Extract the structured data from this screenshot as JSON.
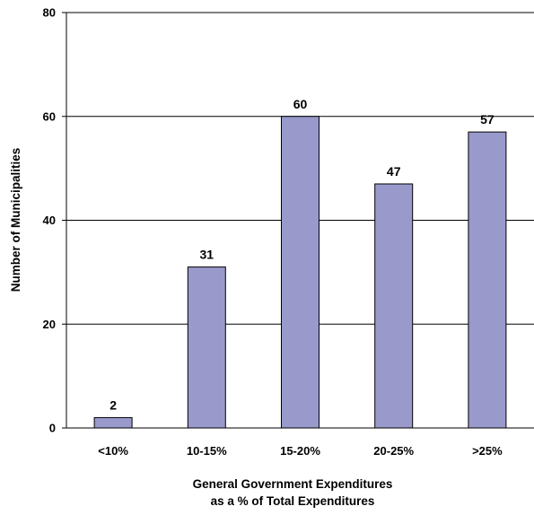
{
  "chart_data": {
    "type": "bar",
    "categories": [
      "<10%",
      "10-15%",
      "15-20%",
      "20-25%",
      ">25%"
    ],
    "values": [
      2,
      31,
      60,
      47,
      57
    ],
    "data_labels": [
      "2",
      "31",
      "60",
      "47",
      "57"
    ],
    "ylabel": "Number of Municipalities",
    "xlabel_lines": [
      "General Government Expenditures",
      "as a % of Total Expenditures"
    ],
    "ylim": [
      0,
      80
    ],
    "yticks": [
      0,
      20,
      40,
      60,
      80
    ],
    "ytick_labels": [
      "0",
      "20",
      "40",
      "60",
      "80"
    ],
    "grid": true,
    "legend": "none",
    "bar_color": "#9999cc",
    "bar_edge_color": "#000000",
    "grid_color": "#000000"
  }
}
